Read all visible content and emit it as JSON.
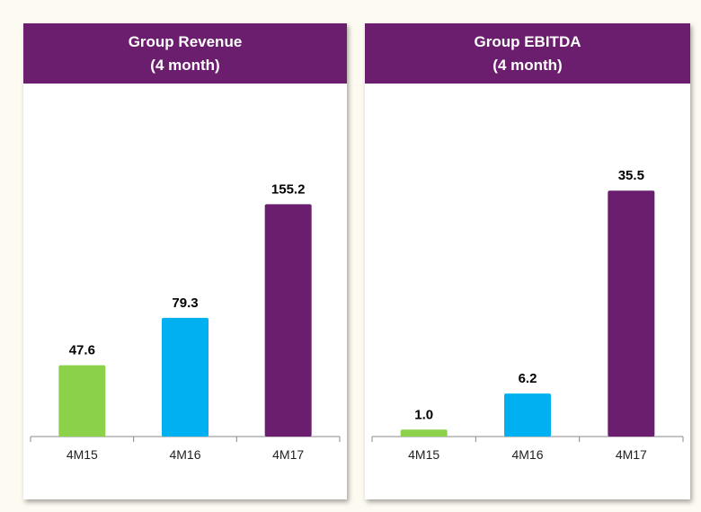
{
  "colors": {
    "green": "#8cd14a",
    "blue": "#00b0f0",
    "purple": "#6b1e6e",
    "axis": "#888888"
  },
  "chart_data": [
    {
      "type": "bar",
      "title": "Group Revenue",
      "subtitle": "(4 month)",
      "categories": [
        "4M15",
        "4M16",
        "4M17"
      ],
      "values": [
        47.6,
        79.3,
        155.2
      ],
      "value_labels": [
        "47.6",
        "79.3",
        "155.2"
      ],
      "bar_colors": [
        "#8cd14a",
        "#00b0f0",
        "#6b1e6e"
      ],
      "ylim": [
        0,
        180
      ],
      "grid": false
    },
    {
      "type": "bar",
      "title": "Group EBITDA",
      "subtitle": "(4 month)",
      "categories": [
        "4M15",
        "4M16",
        "4M17"
      ],
      "values": [
        1.0,
        6.2,
        35.5
      ],
      "value_labels": [
        "1.0",
        "6.2",
        "35.5"
      ],
      "bar_colors": [
        "#8cd14a",
        "#00b0f0",
        "#6b1e6e"
      ],
      "ylim": [
        0,
        38.9
      ],
      "grid": false
    }
  ]
}
